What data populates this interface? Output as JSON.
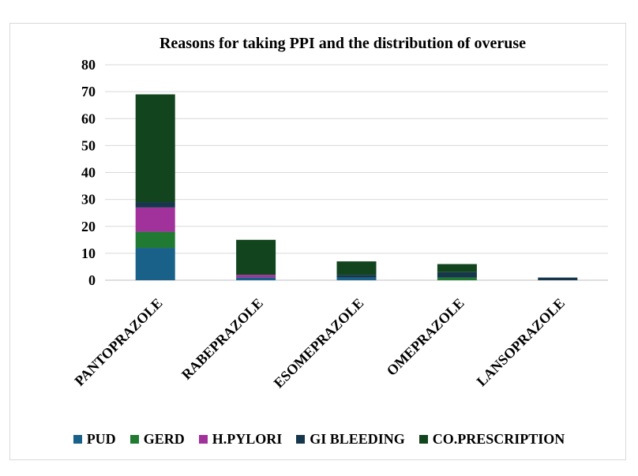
{
  "chart_data": {
    "type": "bar",
    "stacked": true,
    "title": "Reasons for taking PPI and the distribution of overuse",
    "xlabel": "",
    "ylabel": "",
    "ylim": [
      0,
      80
    ],
    "yticks": [
      0,
      10,
      20,
      30,
      40,
      50,
      60,
      70,
      80
    ],
    "grid": true,
    "legend_position": "bottom",
    "categories": [
      "PANTOPRAZOLE",
      "RABEPRAZOLE",
      "ESOMEPRAZOLE",
      "OMEPRAZOLE",
      "LANSOPRAZOLE"
    ],
    "series": [
      {
        "name": "PUD",
        "color": "#1a6189",
        "values": [
          12,
          1,
          1,
          0,
          0
        ]
      },
      {
        "name": "GERD",
        "color": "#217a31",
        "values": [
          6,
          0,
          0,
          1,
          0
        ]
      },
      {
        "name": "H.PYLORI",
        "color": "#a1329b",
        "values": [
          9,
          1,
          0,
          0,
          0
        ]
      },
      {
        "name": "GI BLEEDING",
        "color": "#16364c",
        "values": [
          2,
          0,
          1,
          2,
          1
        ]
      },
      {
        "name": "CO.PRESCRIPTION",
        "color": "#12451e",
        "values": [
          40,
          13,
          5,
          3,
          0
        ]
      }
    ]
  }
}
